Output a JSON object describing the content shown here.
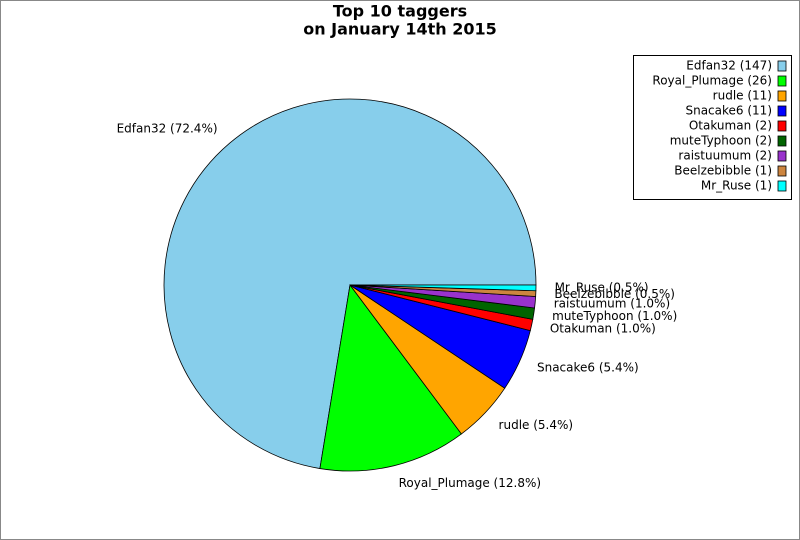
{
  "chart_data": {
    "type": "pie",
    "title": [
      "Top 10 taggers",
      "on January 14th 2015"
    ],
    "categories": [
      "Edfan32",
      "Royal_Plumage",
      "rudle",
      "Snacake6",
      "Otakuman",
      "muteTyphoon",
      "raistuumum",
      "Beelzebibble",
      "Mr_Ruse"
    ],
    "values": [
      147,
      26,
      11,
      11,
      2,
      2,
      2,
      1,
      1
    ],
    "value_labels": [
      "Edfan32 (147)",
      "Royal_Plumage (26)",
      "rudle (11)",
      "Snacake6 (11)",
      "Otakuman (2)",
      "muteTyphoon (2)",
      "raistuumum (2)",
      "Beelzebibble (1)",
      "Mr_Ruse (1)"
    ],
    "slice_labels": [
      "Edfan32 (72.4%)",
      "Royal_Plumage (12.8%)",
      "rudle (5.4%)",
      "Snacake6 (5.4%)",
      "Otakuman (1.0%)",
      "muteTyphoon (1.0%)",
      "raistuumum (1.0%)",
      "Beelzebibble (0.5%)",
      "Mr_Ruse (0.5%)"
    ],
    "colors": [
      "#87ceeb",
      "#00ff00",
      "#ffa500",
      "#0000ff",
      "#ff0000",
      "#006400",
      "#9932cc",
      "#cd853f",
      "#00ffff"
    ],
    "legend": "upper right"
  }
}
